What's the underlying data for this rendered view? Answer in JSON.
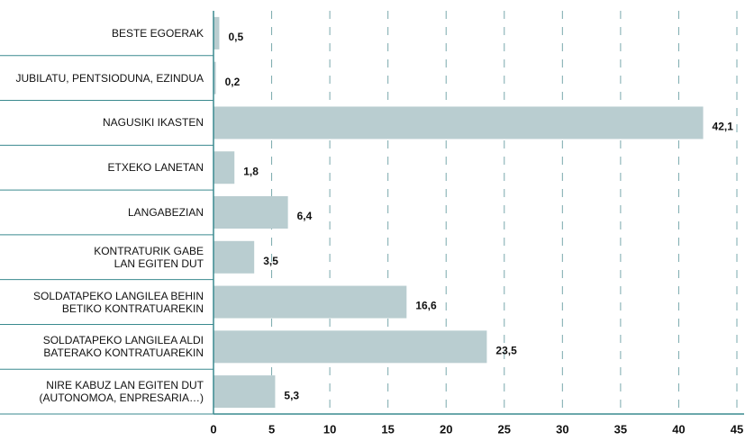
{
  "chart_data": {
    "type": "bar",
    "orientation": "horizontal",
    "categories": [
      "BESTE EGOERAK",
      "JUBILATU, PENTSIODUNA, EZINDUA",
      "NAGUSIKI IKASTEN",
      "ETXEKO LANETAN",
      "LANGABEZIAN",
      "KONTRATURIK GABE\nLAN EGITEN DUT",
      "SOLDATAPEKO LANGILEA BEHIN\nBETIKO KONTRATUAREKIN",
      "SOLDATAPEKO LANGILEA ALDI\nBATERAKO KONTRATUAREKIN",
      "NIRE KABUZ LAN EGITEN DUT\n(AUTONOMOA, ENPRESARIA…)"
    ],
    "values": [
      0.5,
      0.2,
      42.1,
      1.8,
      6.4,
      3.5,
      16.6,
      23.5,
      5.3
    ],
    "value_labels": [
      "0,5",
      "0,2",
      "42,1",
      "1,8",
      "6,4",
      "3,5",
      "16,6",
      "23,5",
      "5,3"
    ],
    "color": "#b9cdd0",
    "xlim": [
      0,
      45
    ],
    "xticks": [
      0,
      5,
      10,
      15,
      20,
      25,
      30,
      35,
      40,
      45
    ],
    "grid": true
  }
}
